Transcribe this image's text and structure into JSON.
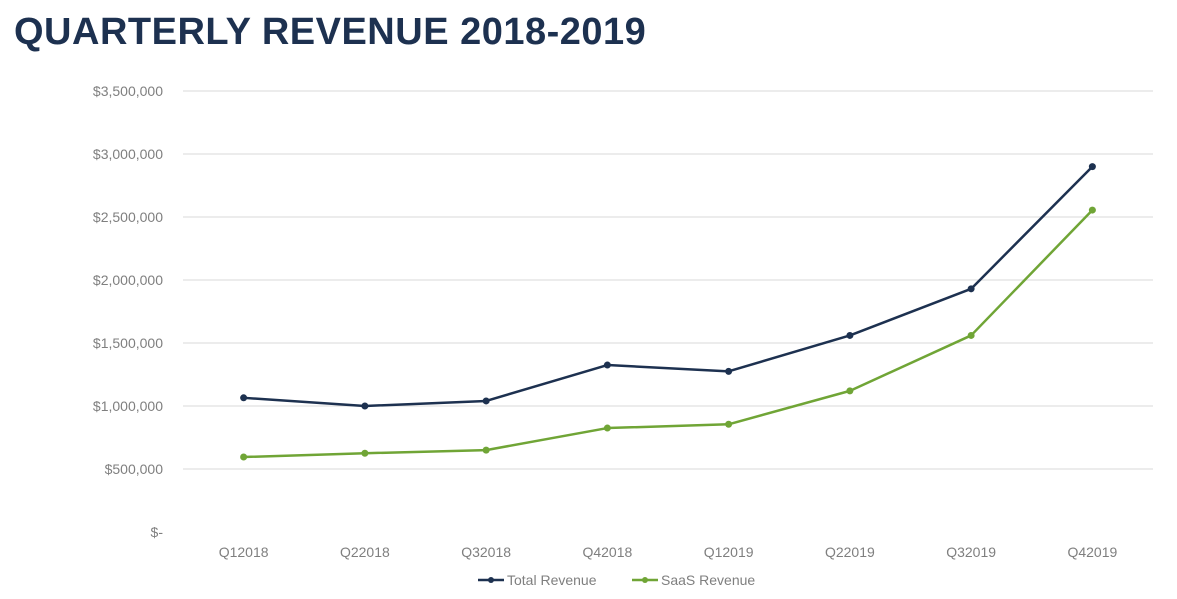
{
  "chart_data": {
    "type": "line",
    "title": "QUARTERLY REVENUE 2018-2019",
    "categories": [
      "Q12018",
      "Q22018",
      "Q32018",
      "Q42018",
      "Q12019",
      "Q22019",
      "Q32019",
      "Q42019"
    ],
    "y_tick_labels": [
      "$-",
      "$500,000",
      "$1,000,000",
      "$1,500,000",
      "$2,000,000",
      "$2,500,000",
      "$3,000,000",
      "$3,500,000"
    ],
    "y_ticks": [
      0,
      500000,
      1000000,
      1500000,
      2000000,
      2500000,
      3000000,
      3500000
    ],
    "ylim": [
      0,
      3500000
    ],
    "grid": true,
    "legend_position": "bottom",
    "series": [
      {
        "name": "Total Revenue",
        "color": "#1d3150",
        "values": [
          1065000,
          1000000,
          1040000,
          1325000,
          1275000,
          1560000,
          1930000,
          2900000
        ]
      },
      {
        "name": "SaaS Revenue",
        "color": "#70a536",
        "values": [
          595000,
          625000,
          650000,
          825000,
          855000,
          1120000,
          1560000,
          2555000
        ]
      }
    ]
  }
}
